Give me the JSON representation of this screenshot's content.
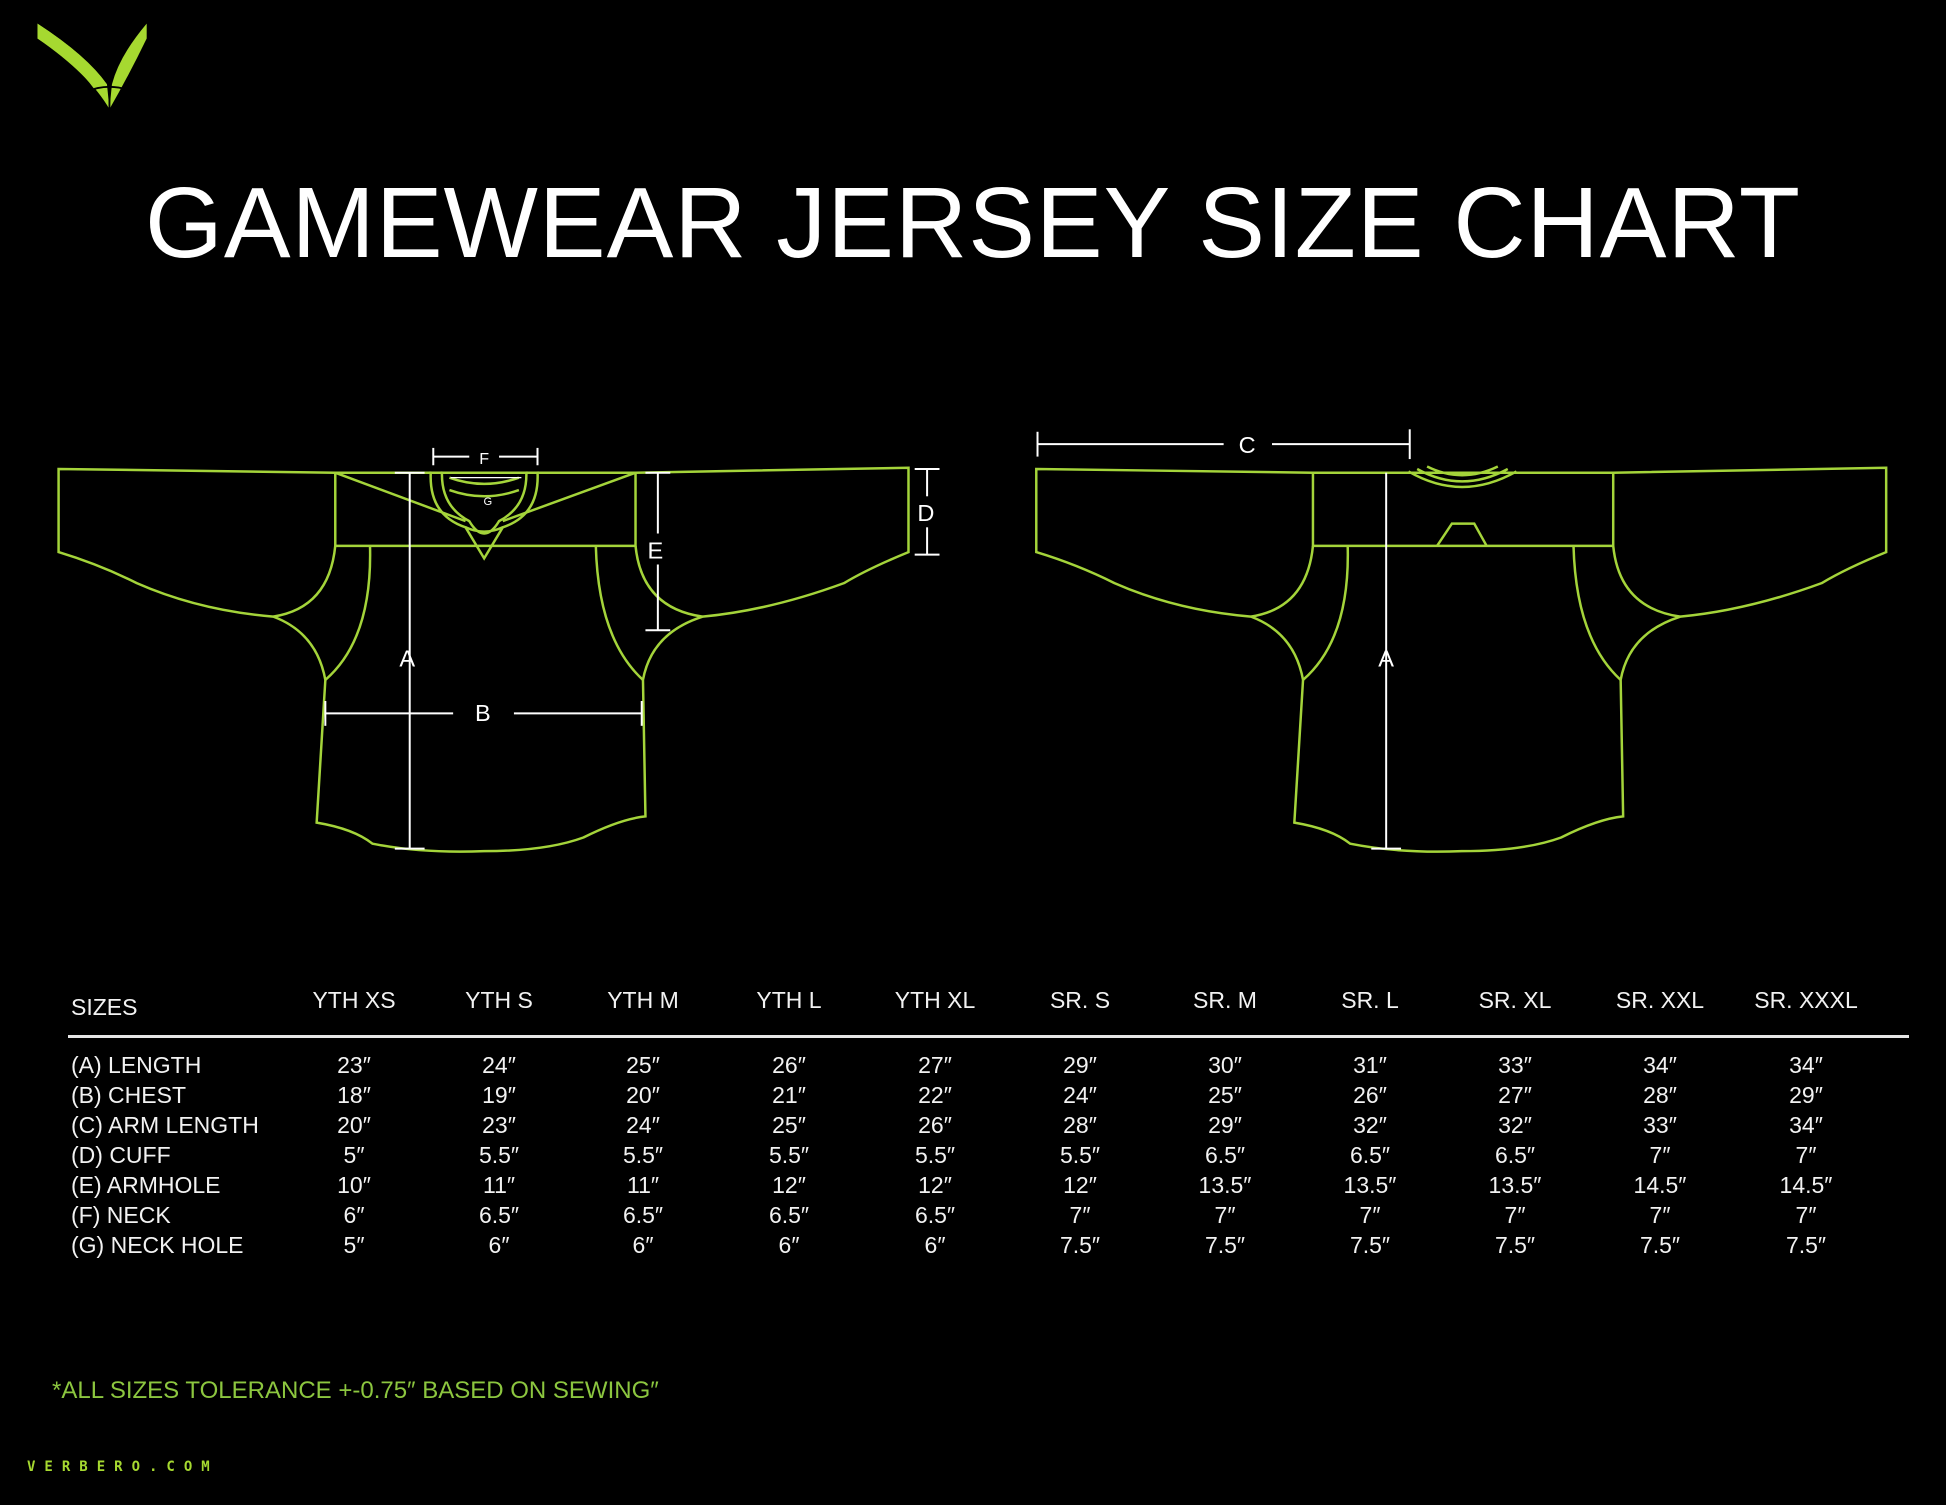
{
  "title": "GAMEWEAR JERSEY SIZE CHART",
  "brand": {
    "logo": "verbero-v-logo",
    "website": "VERBERO.COM"
  },
  "colors": {
    "background": "#000000",
    "outline": "#a4d43a",
    "accent_text": "#8cc63f",
    "text": "#ffffff"
  },
  "diagram": {
    "front_labels": {
      "A": "A",
      "B": "B",
      "D": "D",
      "E": "E",
      "F": "F",
      "G": "G"
    },
    "back_labels": {
      "A": "A",
      "C": "C"
    }
  },
  "table": {
    "header_label": "SIZES",
    "columns": [
      "YTH XS",
      "YTH S",
      "YTH M",
      "YTH L",
      "YTH XL",
      "SR. S",
      "SR. M",
      "SR. L",
      "SR. XL",
      "SR. XXL",
      "SR. XXXL"
    ],
    "rows": [
      {
        "label": "(A) LENGTH",
        "values": [
          "23″",
          "24″",
          "25″",
          "26″",
          "27″",
          "29″",
          "30″",
          "31″",
          "33″",
          "34″",
          "34″"
        ]
      },
      {
        "label": "(B) CHEST",
        "values": [
          "18″",
          "19″",
          "20″",
          "21″",
          "22″",
          "24″",
          "25″",
          "26″",
          "27″",
          "28″",
          "29″"
        ]
      },
      {
        "label": "(C) ARM LENGTH",
        "values": [
          "20″",
          "23″",
          "24″",
          "25″",
          "26″",
          "28″",
          "29″",
          "32″",
          "32″",
          "33″",
          "34″"
        ]
      },
      {
        "label": "(D) CUFF",
        "values": [
          "5″",
          "5.5″",
          "5.5″",
          "5.5″",
          "5.5″",
          "5.5″",
          "6.5″",
          "6.5″",
          "6.5″",
          "7″",
          "7″"
        ]
      },
      {
        "label": "(E) ARMHOLE",
        "values": [
          "10″",
          "11″",
          "11″",
          "12″",
          "12″",
          "12″",
          "13.5″",
          "13.5″",
          "13.5″",
          "14.5″",
          "14.5″"
        ]
      },
      {
        "label": "(F) NECK",
        "values": [
          "6″",
          "6.5″",
          "6.5″",
          "6.5″",
          "6.5″",
          "7″",
          "7″",
          "7″",
          "7″",
          "7″",
          "7″"
        ]
      },
      {
        "label": "(G) NECK HOLE",
        "values": [
          "5″",
          "6″",
          "6″",
          "6″",
          "6″",
          "7.5″",
          "7.5″",
          "7.5″",
          "7.5″",
          "7.5″",
          "7.5″"
        ]
      }
    ]
  },
  "footnote": "*ALL SIZES TOLERANCE +-0.75″ BASED ON SEWING″"
}
